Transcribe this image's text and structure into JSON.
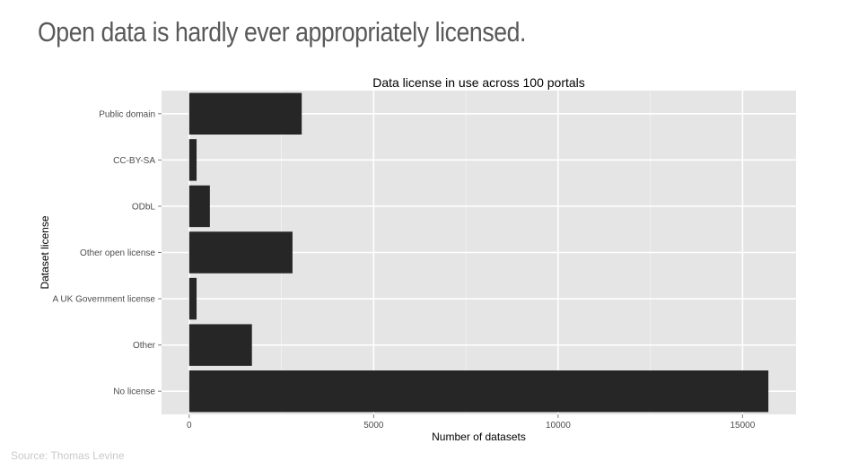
{
  "slide": {
    "title": "Open data is hardly ever appropriately licensed.",
    "source": "Source: Thomas Levine"
  },
  "chart_data": {
    "type": "bar",
    "orientation": "horizontal",
    "title": "Data license in use across 100 portals",
    "xlabel": "Number of datasets",
    "ylabel": "Dataset license",
    "categories": [
      "Public domain",
      "CC-BY-SA",
      "ODbL",
      "Other open license",
      "A UK Government license",
      "Other",
      "No license"
    ],
    "values": [
      3050,
      200,
      560,
      2800,
      200,
      1700,
      15700
    ],
    "xlim": [
      -750,
      16450
    ],
    "xticks": [
      0,
      5000,
      10000,
      15000
    ],
    "xtick_labels": [
      "0",
      "5000",
      "10000",
      "15000"
    ],
    "grid": true,
    "bar_color": "#262626",
    "panel_color": "#e5e5e5",
    "grid_color": "#ffffff"
  }
}
